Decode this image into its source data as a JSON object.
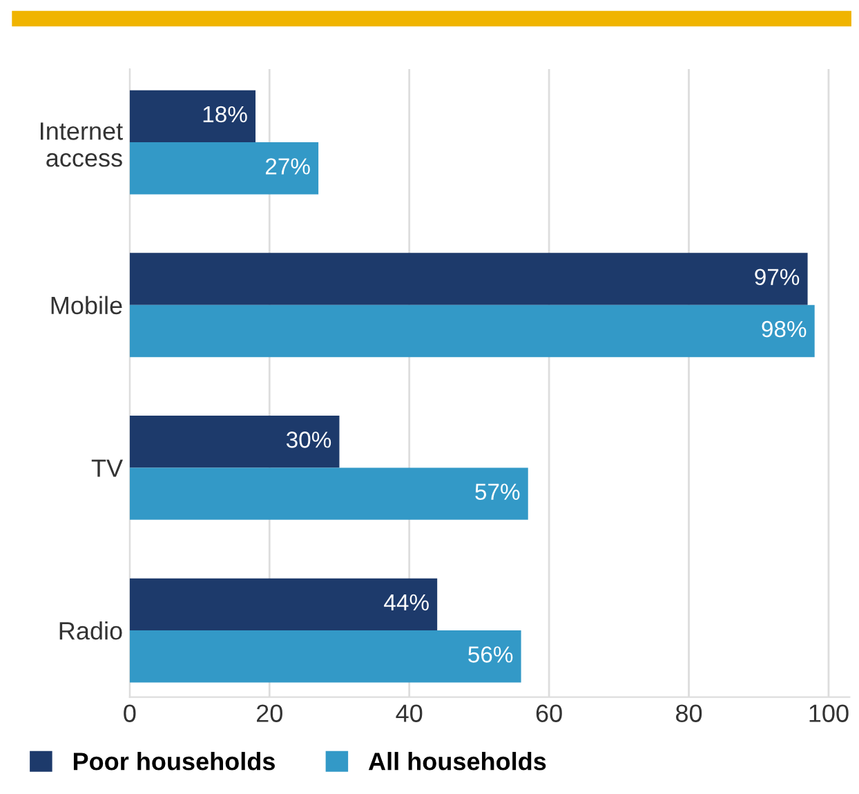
{
  "chart_data": {
    "type": "bar",
    "orientation": "horizontal",
    "categories": [
      "Internet\naccess",
      "Mobile",
      "TV",
      "Radio"
    ],
    "series": [
      {
        "name": "Poor households",
        "color": "#1d3a6b",
        "values": [
          18,
          97,
          30,
          44
        ],
        "value_labels": [
          "18%",
          "97%",
          "30%",
          "44%"
        ]
      },
      {
        "name": "All households",
        "color": "#3399c7",
        "values": [
          27,
          98,
          57,
          56
        ],
        "value_labels": [
          "27%",
          "98%",
          "57%",
          "56%"
        ]
      }
    ],
    "xlim": [
      0,
      103
    ],
    "xticks": [
      0,
      20,
      40,
      60,
      80,
      100
    ],
    "grid": "x",
    "legend": "bottom"
  }
}
